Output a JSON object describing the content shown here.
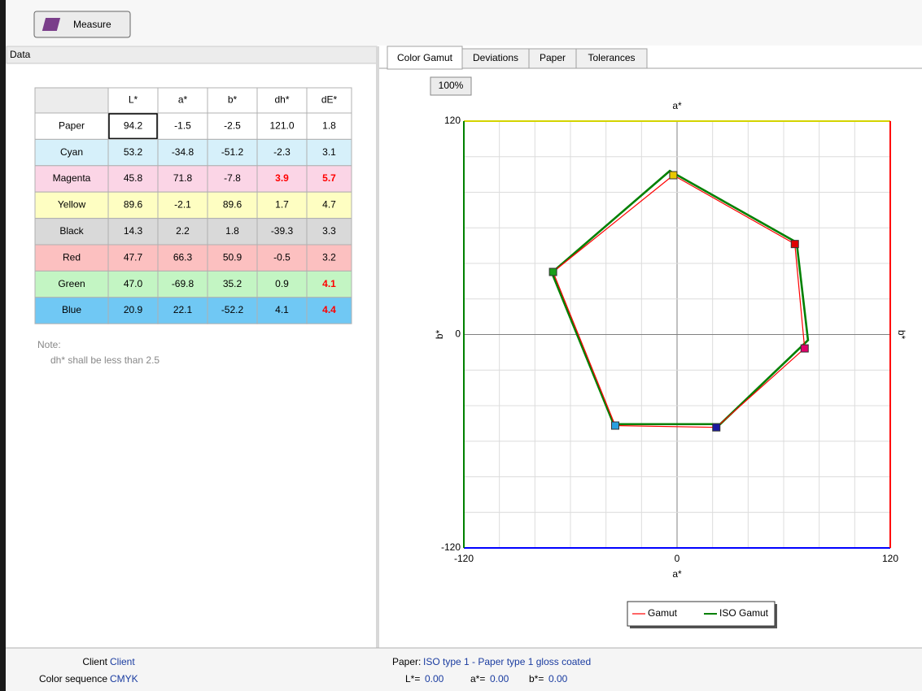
{
  "toolbar": {
    "measure_button": "Measure"
  },
  "data_panel": {
    "title": "Data",
    "table": {
      "columns": [
        "L*",
        "a*",
        "b*",
        "dh*",
        "dE*"
      ],
      "rows": [
        {
          "name": "Paper",
          "color": "#ffffff",
          "cells": [
            "94.2",
            "-1.5",
            "-2.5",
            "121.0",
            "1.8"
          ]
        },
        {
          "name": "Cyan",
          "color": "#d6f0fa",
          "cells": [
            "53.2",
            "-34.8",
            "-51.2",
            "-2.3",
            "3.1"
          ]
        },
        {
          "name": "Magenta",
          "color": "#fbd5e6",
          "cells": [
            "45.8",
            "71.8",
            "-7.8",
            "3.9",
            "5.7"
          ],
          "flagged": [
            3,
            4
          ]
        },
        {
          "name": "Yellow",
          "color": "#fefec2",
          "cells": [
            "89.6",
            "-2.1",
            "89.6",
            "1.7",
            "4.7"
          ]
        },
        {
          "name": "Black",
          "color": "#d9d9d9",
          "cells": [
            "14.3",
            "2.2",
            "1.8",
            "-39.3",
            "3.3"
          ]
        },
        {
          "name": "Red",
          "color": "#fcc0c0",
          "cells": [
            "47.7",
            "66.3",
            "50.9",
            "-0.5",
            "3.2"
          ]
        },
        {
          "name": "Green",
          "color": "#c3f5c3",
          "cells": [
            "47.0",
            "-69.8",
            "35.2",
            "0.9",
            "4.1"
          ],
          "flagged": [
            4
          ]
        },
        {
          "name": "Blue",
          "color": "#70c8f4",
          "cells": [
            "20.9",
            "22.1",
            "-52.2",
            "4.1",
            "4.4"
          ],
          "flagged": [
            4
          ]
        }
      ]
    },
    "note": {
      "title": "Note:",
      "text": "dh* shall be less than 2.5"
    }
  },
  "tabs": [
    "Color Gamut",
    "Deviations",
    "Paper",
    "Tolerances"
  ],
  "active_tab": 0,
  "zoom_button": "100%",
  "chart_data": {
    "type": "line",
    "xlabel": "a*",
    "ylabel": "b*",
    "xlim": [
      -120,
      120
    ],
    "ylim": [
      -120,
      120
    ],
    "xticks": [
      -120,
      0,
      120
    ],
    "yticks": [
      -120,
      0,
      120
    ],
    "xgrid": [
      -100,
      -80,
      -60,
      -40,
      -20,
      0,
      20,
      40,
      60,
      80,
      100
    ],
    "ygrid": [
      -100,
      -80,
      -60,
      -40,
      -20,
      0,
      20,
      40,
      60,
      80,
      100
    ],
    "border_colors": {
      "top": "#d4d400",
      "right": "#ff0000",
      "bottom": "#0000ff",
      "left": "#008000"
    },
    "series": [
      {
        "name": "Gamut",
        "color": "#ff0000",
        "x": [
          -2.1,
          66.3,
          71.8,
          22.1,
          -34.8,
          -69.8
        ],
        "values": [
          89.6,
          50.9,
          -7.8,
          -52.2,
          -51.2,
          35.2
        ],
        "marker_colors": [
          "#e8c800",
          "#e00000",
          "#e0006a",
          "#1a1aa0",
          "#2aa0e0",
          "#1aa01a"
        ]
      },
      {
        "name": "ISO Gamut",
        "color": "#008000",
        "x": [
          -4.1,
          67.3,
          73.7,
          24.3,
          -35.7,
          -70.5
        ],
        "values": [
          92,
          51.8,
          -3.2,
          -50.4,
          -50.4,
          34.8
        ]
      }
    ]
  },
  "status": {
    "client_label": "Client",
    "client": "Client",
    "sequence_label": "Color sequence",
    "sequence": "CMYK",
    "paper_label": "Paper:",
    "paper": "ISO type 1 - Paper type 1 gloss coated",
    "lab": [
      {
        "label": "L*=",
        "value": "0.00"
      },
      {
        "label": "a*=",
        "value": "0.00"
      },
      {
        "label": "b*=",
        "value": "0.00"
      }
    ]
  }
}
